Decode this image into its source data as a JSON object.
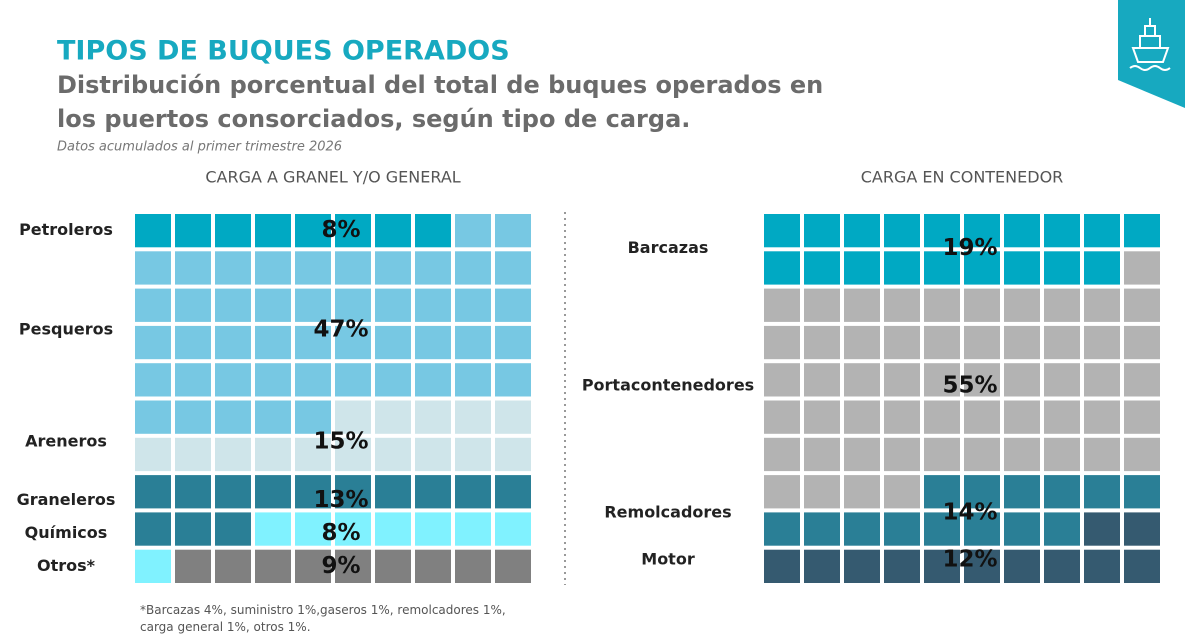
{
  "title": "TIPOS DE BUQUES OPERADOS",
  "subtitle_lines": [
    "Distribución porcentual del total de buques operados en",
    "los puertos consorciados, según tipo de carga."
  ],
  "note": "Datos acumulados al primer trimestre 2026",
  "footnote": "*Barcazas 4%, suministro 1%,gaseros 1%, remolcadores 1%, carga general 1%, otros 1%.",
  "chart_data": [
    {
      "type": "waffle",
      "title": "CARGA A GRANEL Y/O GENERAL",
      "categories": [
        "Petroleros",
        "Pesqueros",
        "Areneros",
        "Graneleros",
        "Químicos",
        "Otros*"
      ],
      "values": [
        8,
        47,
        15,
        13,
        8,
        9
      ],
      "value_labels": [
        "8%",
        "47%",
        "15%",
        "13%",
        "8%",
        "9%"
      ],
      "colors": [
        "#00a9c3",
        "#77c8e3",
        "#cfe5ea",
        "#2a7f96",
        "#80f2ff",
        "#808080"
      ]
    },
    {
      "type": "waffle",
      "title": "CARGA EN CONTENEDOR",
      "categories": [
        "Barcazas",
        "Portacontenedores",
        "Remolcadores",
        "Motor"
      ],
      "values": [
        19,
        55,
        14,
        12
      ],
      "value_labels": [
        "19%",
        "55%",
        "14%",
        "12%"
      ],
      "colors": [
        "#00a9c3",
        "#b3b3b3",
        "#2a7f96",
        "#355a70"
      ]
    }
  ]
}
